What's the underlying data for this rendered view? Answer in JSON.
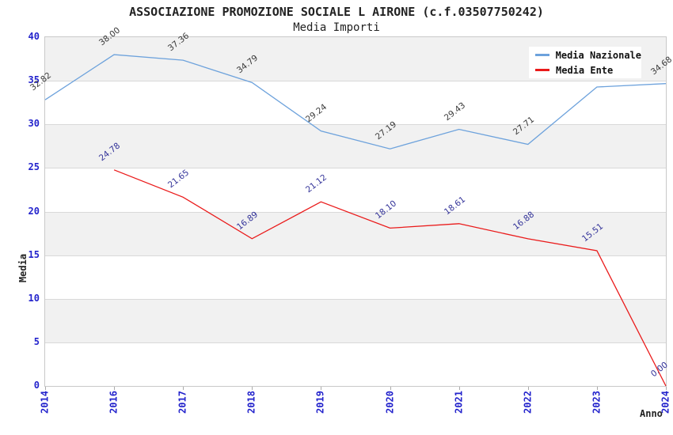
{
  "title": "ASSOCIAZIONE PROMOZIONE SOCIALE L AIRONE (c.f.03507750242)",
  "subtitle": "Media Importi",
  "colors": {
    "nazionale_line": "#6da2dc",
    "ente_line": "#ea1a1a",
    "axis_tick_text": "#2323cc",
    "value_label_nazionale": "#3a3a3a",
    "value_label_ente": "#333399",
    "band_fill": "#f1f1f1",
    "gridline": "#d9d9d9",
    "plot_border": "#c9c9c9"
  },
  "chart_data": {
    "type": "line",
    "title": "ASSOCIAZIONE PROMOZIONE SOCIALE L AIRONE (c.f.03507750242)",
    "subtitle": "Media Importi",
    "xlabel": "Anno",
    "ylabel": "Media",
    "ylim": [
      0,
      40
    ],
    "yticks": [
      0,
      5,
      10,
      15,
      20,
      25,
      30,
      35,
      40
    ],
    "grid": true,
    "banded_background": true,
    "legend_position": "top-right",
    "categories": [
      "2014",
      "2016",
      "2017",
      "2018",
      "2019",
      "2020",
      "2021",
      "2022",
      "2023",
      "2024"
    ],
    "series": [
      {
        "name": "Media Nazionale",
        "color": "#6da2dc",
        "label_color": "#3a3a3a",
        "values": [
          32.82,
          38.0,
          37.36,
          34.79,
          29.24,
          27.19,
          29.43,
          27.71,
          34.29,
          34.68
        ]
      },
      {
        "name": "Media Ente",
        "color": "#ea1a1a",
        "label_color": "#333399",
        "values": [
          null,
          24.78,
          21.65,
          16.89,
          21.12,
          18.1,
          18.61,
          16.88,
          15.51,
          0.0
        ]
      }
    ]
  }
}
